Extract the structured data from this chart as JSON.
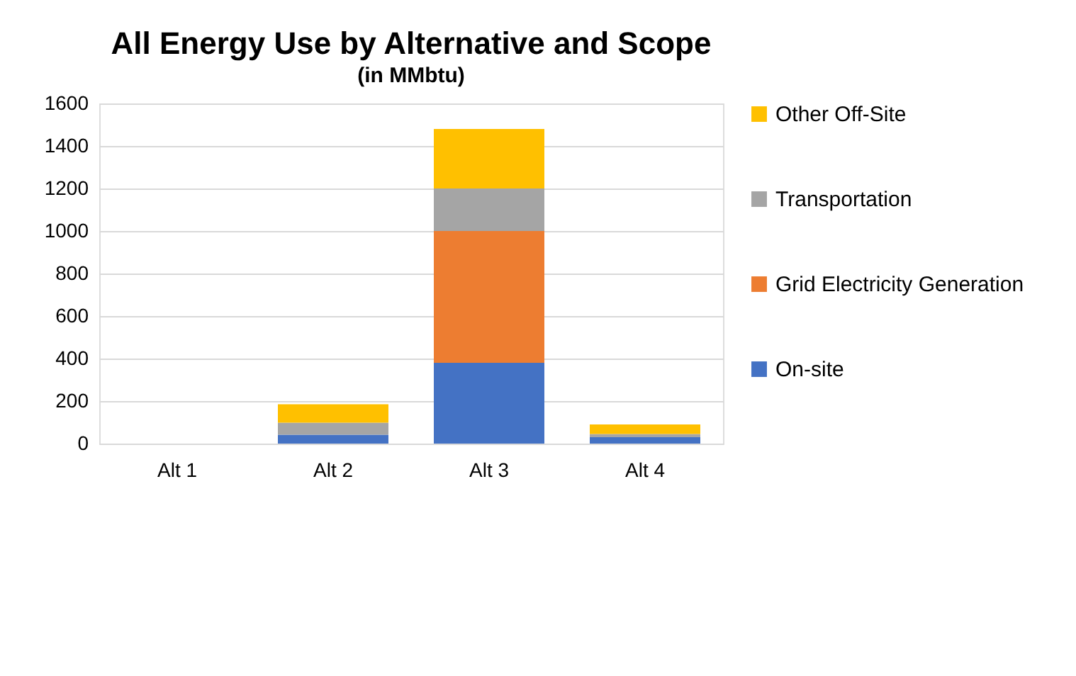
{
  "chart_data": {
    "type": "bar",
    "title": "All Energy Use by Alternative and Scope",
    "subtitle": "(in MMbtu)",
    "categories": [
      "Alt 1",
      "Alt 2",
      "Alt 3",
      "Alt 4"
    ],
    "stacked": true,
    "series": [
      {
        "name": "On-site",
        "color": "#4472c4",
        "values": [
          0,
          42,
          380,
          30
        ]
      },
      {
        "name": "Grid Electricity Generation",
        "color": "#ed7d31",
        "values": [
          0,
          0,
          620,
          0
        ]
      },
      {
        "name": "Transportation",
        "color": "#a5a5a5",
        "values": [
          0,
          56,
          200,
          15
        ]
      },
      {
        "name": "Other Off-Site",
        "color": "#ffc000",
        "values": [
          0,
          87,
          280,
          45
        ]
      }
    ],
    "ylim": [
      0,
      1600
    ],
    "yticks": [
      0,
      200,
      400,
      600,
      800,
      1000,
      1200,
      1400,
      1600
    ],
    "grid": "y",
    "legend": "right"
  }
}
